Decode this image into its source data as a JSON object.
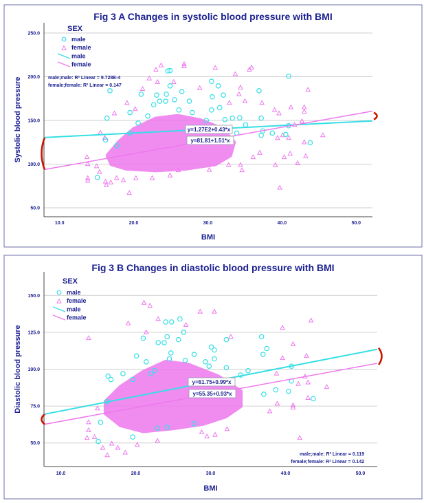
{
  "colors": {
    "male": "#35dfe6",
    "female": "#ee78ee",
    "text": "#1c2190",
    "bracket": "#cc1500"
  },
  "chart_data": [
    {
      "type": "scatter",
      "title": "Fig 3 A Changes in systolic blood pressure with BMI",
      "xlabel": "BMI",
      "ylabel": "Systolic blood pressure",
      "xlim": [
        7.9,
        52.2
      ],
      "ylim": [
        39.8,
        261.8
      ],
      "xticks": [
        "10.0",
        "20.0",
        "30.0",
        "40.0",
        "50.0"
      ],
      "yticks": [
        "50.0",
        "100.0",
        "150.0",
        "200.0",
        "250.0"
      ],
      "grid": "horizontal",
      "legend": {
        "title": "SEX",
        "placement": "top-left",
        "entries": [
          "male",
          "female",
          "male",
          "female"
        ]
      },
      "r2_placement": "top-left",
      "r2": [
        "male;male: R² Linear = 9.728E-4",
        "female;female: R² Linear = 0.147"
      ],
      "series": [
        {
          "name": "male",
          "marker": "circle",
          "fit": {
            "intercept": 127,
            "slope": 0.43,
            "label": "y=1.27E2+0.43*x"
          },
          "points": [
            [
              16.8,
              184
            ],
            [
              16.4,
              152.6
            ],
            [
              16.2,
              127.6
            ],
            [
              15.1,
              84.7
            ],
            [
              19.5,
              159
            ],
            [
              21,
              180
            ],
            [
              23.1,
              179
            ],
            [
              22.7,
              168
            ],
            [
              23.5,
              172
            ],
            [
              24.3,
              172
            ],
            [
              24.4,
              180
            ],
            [
              24.6,
              206.6
            ],
            [
              24.9,
              207
            ],
            [
              24.9,
              189.5
            ],
            [
              25.5,
              173.7
            ],
            [
              26.1,
              162
            ],
            [
              26.5,
              183
            ],
            [
              27.5,
              172
            ],
            [
              27.9,
              159
            ],
            [
              30.5,
              194.7
            ],
            [
              31.4,
              189.5
            ],
            [
              30.6,
              177
            ],
            [
              30.5,
              162
            ],
            [
              31.6,
              164.5
            ],
            [
              32.1,
              179
            ],
            [
              32.3,
              151
            ],
            [
              33.3,
              152.6
            ],
            [
              34.3,
              153
            ],
            [
              36.9,
              184
            ],
            [
              37.2,
              152.6
            ],
            [
              37.4,
              138
            ],
            [
              37.2,
              133
            ],
            [
              38.7,
              135.5
            ],
            [
              40.5,
              134
            ],
            [
              40.9,
              200.5
            ],
            [
              40.9,
              144
            ],
            [
              43.8,
              124.5
            ],
            [
              19.5,
              135.5
            ],
            [
              20.6,
              147
            ],
            [
              21.9,
              155
            ],
            [
              17.7,
              121
            ],
            [
              33.9,
              135.5
            ],
            [
              35.1,
              145
            ],
            [
              28.1,
              141
            ],
            [
              29.8,
              150
            ]
          ]
        },
        {
          "name": "female",
          "marker": "triangle",
          "fit": {
            "intercept": 81.81,
            "slope": 1.51,
            "label": "y=81.81+1.51*x"
          },
          "dense_region": [
            [
              17,
              100
            ],
            [
              19,
              95
            ],
            [
              23,
              93
            ],
            [
              27,
              95
            ],
            [
              31,
              100
            ],
            [
              33,
              110
            ],
            [
              33.5,
              125
            ],
            [
              32,
              140
            ],
            [
              29,
              150
            ],
            [
              26,
              155
            ],
            [
              23,
              152
            ],
            [
              20,
              140
            ],
            [
              18,
              125
            ],
            [
              16.5,
              110
            ]
          ],
          "points": [
            [
              13.7,
              108
            ],
            [
              13.8,
              100
            ],
            [
              13.8,
              84
            ],
            [
              13.8,
              81
            ],
            [
              15.5,
              136
            ],
            [
              16.1,
              130
            ],
            [
              16.2,
              80
            ],
            [
              16.3,
              76
            ],
            [
              16.9,
              79
            ],
            [
              17.4,
              158
            ],
            [
              19.1,
              170
            ],
            [
              19.4,
              67
            ],
            [
              20.2,
              163
            ],
            [
              21.2,
              186
            ],
            [
              22.1,
              198
            ],
            [
              23.0,
              208
            ],
            [
              23.7,
              213
            ],
            [
              23.2,
              194
            ],
            [
              25.4,
              194
            ],
            [
              26.8,
              214.5
            ],
            [
              26.8,
              212
            ],
            [
              28.9,
              187
            ],
            [
              31.0,
              210
            ],
            [
              33.7,
              203
            ],
            [
              35.6,
              208
            ],
            [
              35.9,
              210.5
            ],
            [
              34.4,
              187.6
            ],
            [
              34.2,
              180
            ],
            [
              35.0,
              172
            ],
            [
              32.9,
              170
            ],
            [
              37.3,
              170
            ],
            [
              39.0,
              162
            ],
            [
              39.6,
              158
            ],
            [
              41.2,
              165
            ],
            [
              43.0,
              165
            ],
            [
              43.0,
              160
            ],
            [
              43.5,
              185
            ],
            [
              42.7,
              149
            ],
            [
              41.7,
              145
            ],
            [
              45.5,
              133
            ],
            [
              43.0,
              125
            ],
            [
              40.9,
              130
            ],
            [
              40.1,
              133
            ],
            [
              39.4,
              130
            ],
            [
              41.1,
              112
            ],
            [
              40.3,
              108
            ],
            [
              43.2,
              109
            ],
            [
              42.1,
              101
            ],
            [
              39.1,
              99
            ],
            [
              39.7,
              73
            ],
            [
              37.0,
              113
            ],
            [
              36.1,
              108
            ],
            [
              34.6,
              93
            ],
            [
              34.4,
              99
            ],
            [
              32.8,
              99
            ],
            [
              30.2,
              93.4
            ],
            [
              26.0,
              93
            ],
            [
              24.9,
              87
            ],
            [
              22.5,
              84
            ],
            [
              20.3,
              84
            ],
            [
              18.6,
              81.6
            ],
            [
              17.7,
              84
            ],
            [
              15.4,
              91
            ],
            [
              15.0,
              97.5
            ]
          ]
        }
      ]
    },
    {
      "type": "scatter",
      "title": "Fig 3 B Changes in diastolic blood pressure with BMI",
      "xlabel": "BMI",
      "ylabel": "Diastolic blood pressure",
      "xlim": [
        7.75,
        52.25
      ],
      "ylim": [
        34,
        166
      ],
      "xticks": [
        "10.0",
        "20.0",
        "30.0",
        "40.0",
        "50.0"
      ],
      "yticks": [
        "50.0",
        "75.0",
        "100.0",
        "125.0",
        "150.0"
      ],
      "grid": "horizontal",
      "legend": {
        "title": "SEX",
        "placement": "top-left",
        "entries": [
          "male",
          "female",
          "male",
          "female"
        ]
      },
      "r2_placement": "bottom-right",
      "r2": [
        "male;male: R² Linear = 0.119",
        "female;female: R² Linear = 0.142"
      ],
      "series": [
        {
          "name": "male",
          "marker": "circle",
          "fit": {
            "intercept": 61.75,
            "slope": 0.99,
            "label": "y=61.75+0.99*x"
          },
          "points": [
            [
              16.3,
              95.3
            ],
            [
              16.7,
              93
            ],
            [
              16.2,
              78
            ],
            [
              15.3,
              64
            ],
            [
              15.0,
              51
            ],
            [
              18.3,
              97
            ],
            [
              19.6,
              93
            ],
            [
              20.1,
              109
            ],
            [
              19.6,
              54
            ],
            [
              21.0,
              121
            ],
            [
              21.4,
              105
            ],
            [
              22.0,
              97
            ],
            [
              22.5,
              99
            ],
            [
              23.0,
              118
            ],
            [
              23.8,
              118
            ],
            [
              24.0,
              132
            ],
            [
              24.8,
              132
            ],
            [
              24.2,
              122
            ],
            [
              24.7,
              111
            ],
            [
              24.5,
              107
            ],
            [
              25.7,
              120
            ],
            [
              25.9,
              134
            ],
            [
              26.4,
              125
            ],
            [
              26.6,
              106
            ],
            [
              27.8,
              110
            ],
            [
              27.8,
              63
            ],
            [
              29.3,
              105
            ],
            [
              29.8,
              102
            ],
            [
              30.1,
              115
            ],
            [
              30.5,
              113
            ],
            [
              30.5,
              107
            ],
            [
              32.1,
              120
            ],
            [
              32.1,
              101
            ],
            [
              34.0,
              96
            ],
            [
              35.0,
              99
            ],
            [
              36.8,
              122
            ],
            [
              37.0,
              110
            ],
            [
              37.5,
              114
            ],
            [
              37.1,
              83
            ],
            [
              38.7,
              86
            ],
            [
              40.4,
              85
            ],
            [
              40.8,
              102
            ],
            [
              40.8,
              92
            ],
            [
              43.7,
              80
            ],
            [
              22.9,
              60
            ],
            [
              24.2,
              60.6
            ]
          ]
        },
        {
          "name": "female",
          "marker": "triangle",
          "fit": {
            "intercept": 55.35,
            "slope": 0.93,
            "label": "y=55.35+0.93*x"
          },
          "dense_region": [
            [
              16,
              70
            ],
            [
              18,
              62
            ],
            [
              21,
              58
            ],
            [
              25,
              60
            ],
            [
              29,
              63
            ],
            [
              32,
              68
            ],
            [
              34,
              75
            ],
            [
              34,
              85
            ],
            [
              31,
              95
            ],
            [
              27,
              103
            ],
            [
              24,
              105
            ],
            [
              21,
              98
            ],
            [
              18,
              88
            ],
            [
              16,
              78
            ]
          ],
          "points": [
            [
              13.7,
              121
            ],
            [
              21.1,
              145
            ],
            [
              21.9,
              143
            ],
            [
              28.6,
              139
            ],
            [
              30.5,
              139
            ],
            [
              23.0,
              134
            ],
            [
              19.0,
              131
            ],
            [
              26.7,
              130
            ],
            [
              21.4,
              125
            ],
            [
              32.7,
              122
            ],
            [
              39.6,
              128
            ],
            [
              43.4,
              133
            ],
            [
              41.0,
              117
            ],
            [
              42.8,
              109
            ],
            [
              39.6,
              107.5
            ],
            [
              38.8,
              97
            ],
            [
              43.0,
              91
            ],
            [
              42.6,
              95
            ],
            [
              41.7,
              90
            ],
            [
              45.5,
              88
            ],
            [
              43.0,
              80.5
            ],
            [
              41.0,
              75.5
            ],
            [
              41.0,
              74
            ],
            [
              38.9,
              76.6
            ],
            [
              37.9,
              71.4
            ],
            [
              41.9,
              53.4
            ],
            [
              13.7,
              64
            ],
            [
              13.7,
              58.6
            ],
            [
              13.5,
              53.4
            ],
            [
              14.5,
              54
            ],
            [
              15.6,
              46.6
            ],
            [
              16.2,
              41.7
            ],
            [
              16.8,
              49.5
            ],
            [
              17.6,
              46.7
            ],
            [
              18.6,
              43.4
            ],
            [
              20.2,
              48.7
            ],
            [
              22.9,
              51.4
            ],
            [
              29.5,
              54.4
            ],
            [
              30.6,
              55.5
            ],
            [
              28.8,
              57.3
            ],
            [
              32.2,
              59.4
            ],
            [
              14.9,
              73.4
            ]
          ]
        }
      ]
    }
  ]
}
